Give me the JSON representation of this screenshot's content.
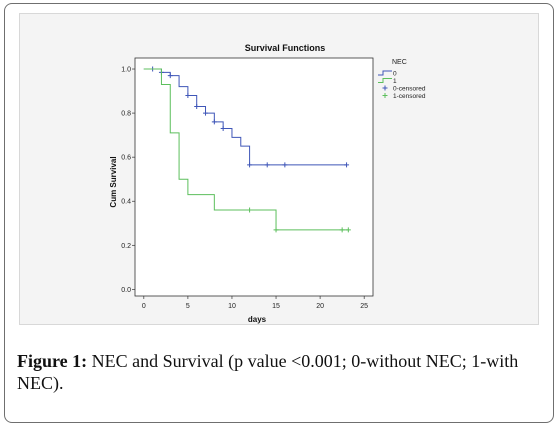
{
  "chart_data": {
    "type": "line",
    "step": true,
    "title": "Survival Functions",
    "xlabel": "days",
    "ylabel": "Cum Survival",
    "xlim": [
      -1,
      26
    ],
    "ylim": [
      -0.03,
      1.05
    ],
    "x_ticks": [
      0,
      5,
      10,
      15,
      20,
      25
    ],
    "x_tick_labels": [
      "0",
      "5",
      "10",
      "15",
      "20",
      "25"
    ],
    "y_ticks": [
      0.0,
      0.2,
      0.4,
      0.6,
      0.8,
      1.0
    ],
    "y_tick_labels": [
      "0.0",
      "0.2",
      "0.4",
      "0.6",
      "0.8",
      "1.0"
    ],
    "grid": false,
    "legend_title": "NEC",
    "legend_position": "top-right",
    "legend_entries": [
      "0",
      "1",
      "0-censored",
      "1-censored"
    ],
    "series": [
      {
        "name": "0",
        "color": "#3f56b8",
        "steps": [
          [
            0,
            1.0
          ],
          [
            2,
            0.985
          ],
          [
            3,
            0.97
          ],
          [
            4,
            0.92
          ],
          [
            5,
            0.88
          ],
          [
            6,
            0.83
          ],
          [
            7,
            0.8
          ],
          [
            8,
            0.76
          ],
          [
            9,
            0.73
          ],
          [
            10,
            0.69
          ],
          [
            11,
            0.65
          ],
          [
            12,
            0.565
          ],
          [
            23,
            0.565
          ]
        ],
        "censored": [
          [
            1,
            1.0
          ],
          [
            2,
            0.985
          ],
          [
            3,
            0.97
          ],
          [
            5,
            0.88
          ],
          [
            6,
            0.83
          ],
          [
            7,
            0.8
          ],
          [
            8,
            0.76
          ],
          [
            9,
            0.73
          ],
          [
            12,
            0.565
          ],
          [
            14,
            0.565
          ],
          [
            16,
            0.565
          ],
          [
            23,
            0.565
          ]
        ]
      },
      {
        "name": "1",
        "color": "#5cbf5c",
        "steps": [
          [
            0,
            1.0
          ],
          [
            2,
            0.93
          ],
          [
            3,
            0.71
          ],
          [
            4,
            0.5
          ],
          [
            5,
            0.43
          ],
          [
            8,
            0.36
          ],
          [
            15,
            0.27
          ],
          [
            23.2,
            0.27
          ]
        ],
        "censored": [
          [
            12,
            0.36
          ],
          [
            15,
            0.27
          ],
          [
            22.5,
            0.27
          ],
          [
            23.2,
            0.27
          ]
        ]
      }
    ]
  },
  "caption": {
    "label": "Figure 1:",
    "text": " NEC and Survival (p value <0.001; 0-without NEC; 1-with NEC)."
  }
}
